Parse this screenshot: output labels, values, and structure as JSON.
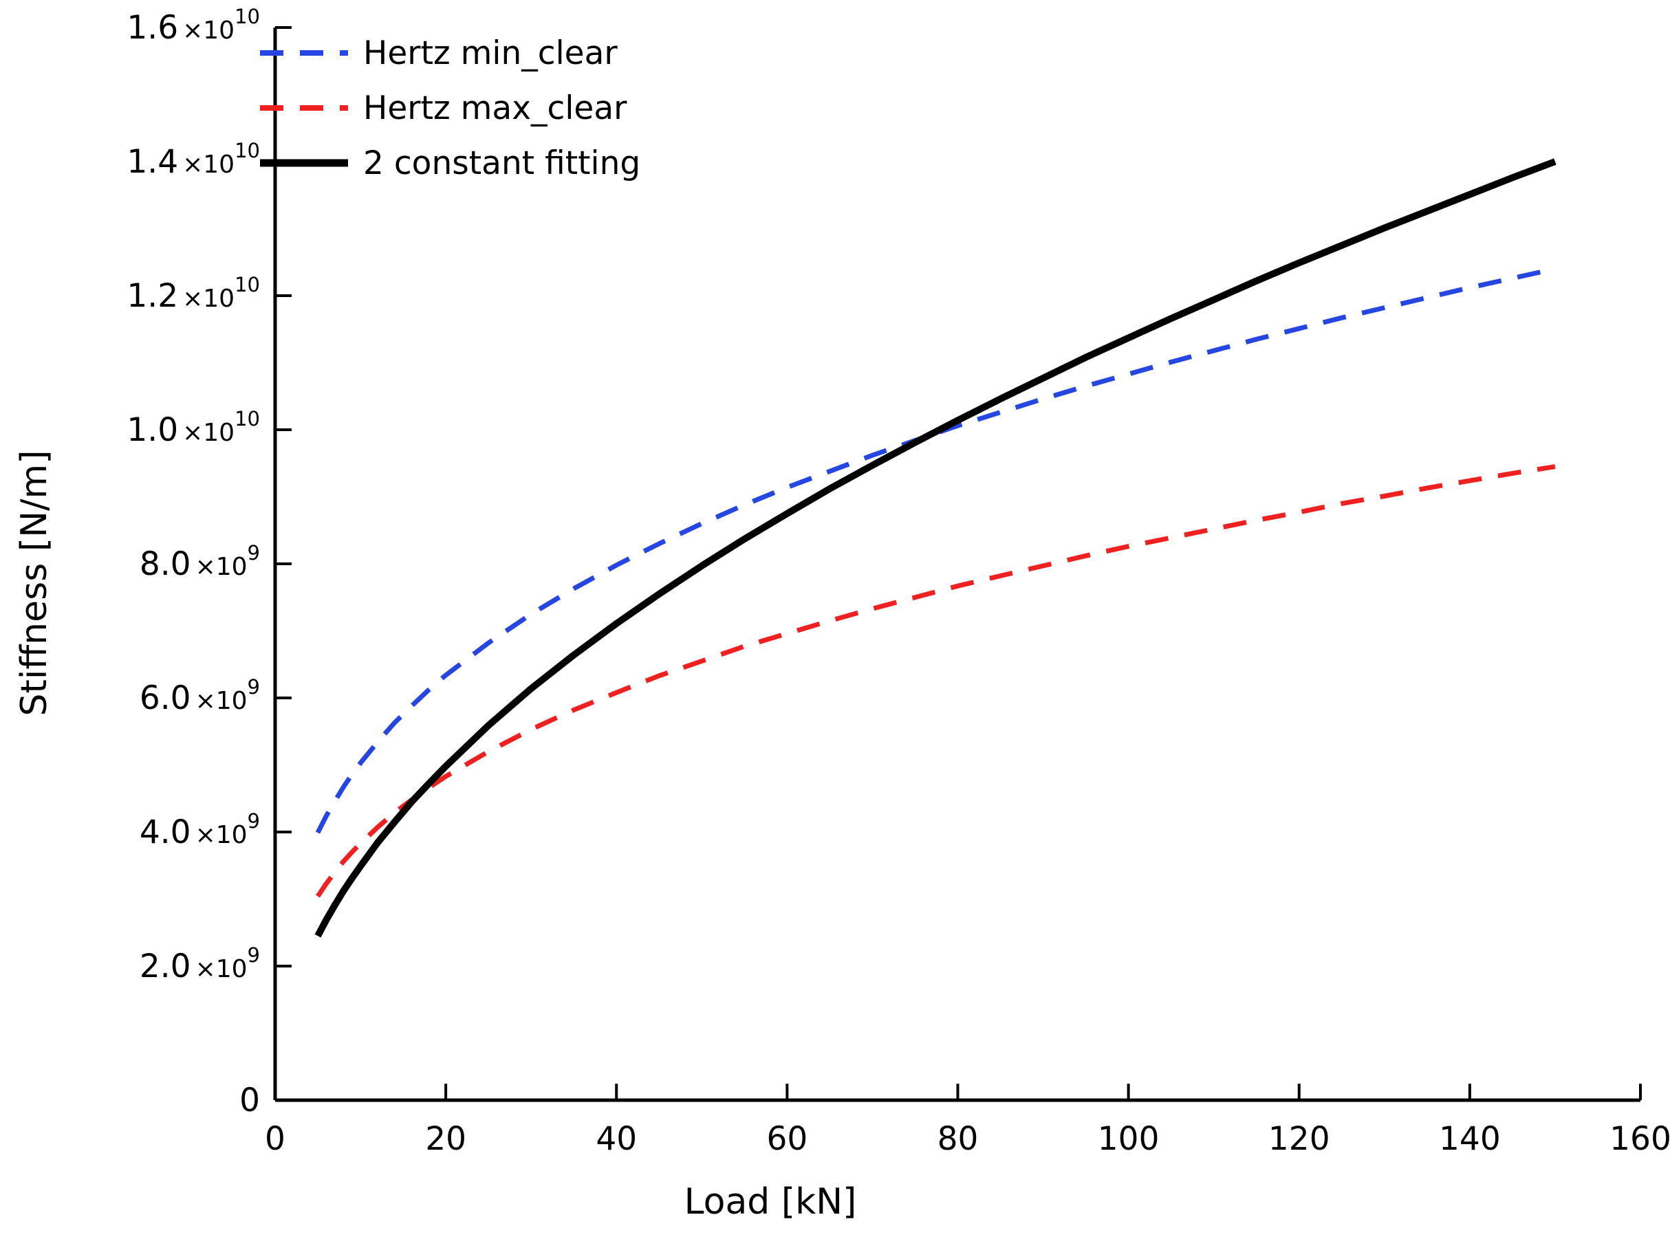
{
  "figure": {
    "background": "#ffffff",
    "axis_color": "#000000"
  },
  "chart_data": {
    "type": "line",
    "title": "",
    "xlabel": "Load [kN]",
    "ylabel": "Stiffness [N/m]",
    "xlim": [
      0,
      160
    ],
    "ylim_1e9": [
      0,
      16
    ],
    "values_scale": 1000000000,
    "grid": false,
    "legend_position": "top-left-inside",
    "x_ticks": [
      0,
      20,
      40,
      60,
      80,
      100,
      120,
      140,
      160
    ],
    "y_ticks": [
      {
        "value_1e9": 0,
        "mantissa": "0",
        "exponent": ""
      },
      {
        "value_1e9": 2,
        "mantissa": "2.0",
        "exponent": "9"
      },
      {
        "value_1e9": 4,
        "mantissa": "4.0",
        "exponent": "9"
      },
      {
        "value_1e9": 6,
        "mantissa": "6.0",
        "exponent": "9"
      },
      {
        "value_1e9": 8,
        "mantissa": "8.0",
        "exponent": "9"
      },
      {
        "value_1e9": 10,
        "mantissa": "1.0",
        "exponent": "10"
      },
      {
        "value_1e9": 12,
        "mantissa": "1.2",
        "exponent": "10"
      },
      {
        "value_1e9": 14,
        "mantissa": "1.4",
        "exponent": "10"
      },
      {
        "value_1e9": 16,
        "mantissa": "1.6",
        "exponent": "10"
      }
    ],
    "x": [
      5,
      6,
      7,
      8,
      9,
      10,
      12,
      14,
      16,
      18,
      20,
      25,
      30,
      35,
      40,
      45,
      50,
      55,
      60,
      65,
      70,
      75,
      80,
      85,
      90,
      95,
      100,
      105,
      110,
      115,
      120,
      125,
      130,
      135,
      140,
      145,
      150
    ],
    "series": [
      {
        "name": "Hertz min_clear",
        "color": "#2546e0",
        "style": "dashed",
        "values_1e9": [
          3.99,
          4.24,
          4.46,
          4.67,
          4.86,
          5.03,
          5.34,
          5.63,
          5.88,
          6.12,
          6.34,
          6.82,
          7.25,
          7.63,
          7.98,
          8.3,
          8.6,
          8.88,
          9.14,
          9.38,
          9.62,
          9.84,
          10.06,
          10.26,
          10.46,
          10.65,
          10.83,
          11.01,
          11.18,
          11.35,
          11.51,
          11.67,
          11.82,
          11.97,
          12.12,
          12.26,
          12.4
        ]
      },
      {
        "name": "Hertz max_clear",
        "color": "#ee2020",
        "style": "dashed",
        "values_1e9": [
          3.04,
          3.23,
          3.4,
          3.56,
          3.7,
          3.83,
          4.07,
          4.29,
          4.48,
          4.66,
          4.83,
          5.2,
          5.53,
          5.82,
          6.08,
          6.33,
          6.55,
          6.77,
          6.96,
          7.15,
          7.33,
          7.5,
          7.67,
          7.82,
          7.97,
          8.12,
          8.26,
          8.39,
          8.52,
          8.65,
          8.77,
          8.9,
          9.01,
          9.13,
          9.24,
          9.35,
          9.45
        ]
      },
      {
        "name": "2 constant fitting",
        "color": "#000000",
        "style": "solid",
        "values_1e9": [
          2.45,
          2.69,
          2.91,
          3.12,
          3.31,
          3.49,
          3.84,
          4.15,
          4.45,
          4.72,
          4.98,
          5.59,
          6.14,
          6.64,
          7.11,
          7.55,
          7.97,
          8.37,
          8.75,
          9.12,
          9.47,
          9.81,
          10.14,
          10.46,
          10.77,
          11.08,
          11.37,
          11.66,
          11.94,
          12.22,
          12.49,
          12.75,
          13.01,
          13.26,
          13.51,
          13.76,
          14.0
        ]
      }
    ]
  }
}
